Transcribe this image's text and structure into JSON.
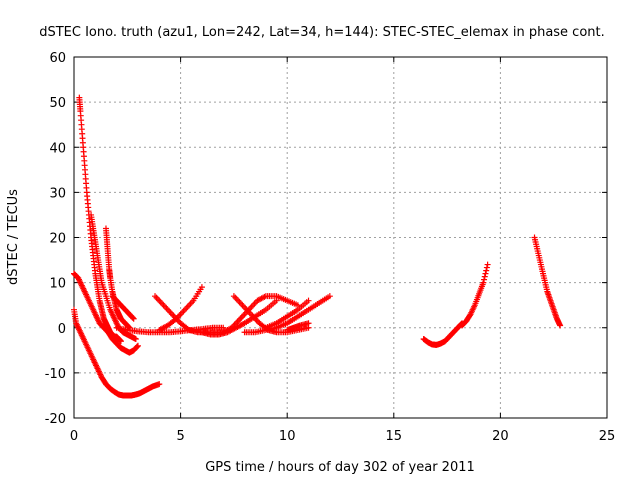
{
  "chart_data": {
    "type": "scatter",
    "title": "dSTEC Iono. truth (azu1, Lon=242, Lat=34, h=144): STEC-STEC_elemax in phase cont.",
    "xlabel": "GPS time / hours of day 302 of year 2011",
    "ylabel": "dSTEC  / TECUs",
    "xlim": [
      0,
      25
    ],
    "ylim": [
      -20,
      60
    ],
    "xticks": [
      0,
      5,
      10,
      15,
      20,
      25
    ],
    "yticks": [
      -20,
      -10,
      0,
      10,
      20,
      30,
      40,
      50,
      60
    ],
    "grid": true,
    "marker": "+",
    "color": "#ff0000",
    "series": [
      {
        "x": [
          0.25,
          0.3,
          0.4,
          0.5,
          0.6,
          0.7,
          0.8,
          0.9,
          1.0,
          1.1,
          1.2,
          1.3,
          1.4,
          1.5,
          1.6,
          1.7,
          1.8,
          1.9,
          2.0,
          2.1,
          2.2
        ],
        "y": [
          51,
          48,
          42,
          36,
          30,
          25,
          20,
          16,
          12,
          9,
          6,
          4,
          2,
          1,
          0,
          -1,
          -1.5,
          -2,
          -2,
          -2.5,
          -3
        ]
      },
      {
        "x": [
          0.8,
          0.9,
          1.0,
          1.1,
          1.2,
          1.3,
          1.5,
          1.7,
          1.9,
          2.1,
          2.3,
          2.5,
          2.7,
          2.9
        ],
        "y": [
          25,
          22,
          19,
          16,
          13,
          10,
          7,
          4,
          2,
          0,
          -1,
          -1.5,
          -2,
          -2.5
        ]
      },
      {
        "x": [
          1.5,
          1.55,
          1.6,
          1.65,
          1.7,
          1.8,
          1.9,
          2.0,
          2.1,
          2.2,
          2.4,
          2.6
        ],
        "y": [
          22,
          19,
          16,
          13,
          11,
          8,
          6,
          4,
          3,
          2,
          1,
          0
        ]
      },
      {
        "x": [
          0.0,
          0.2,
          0.4,
          0.6,
          0.8,
          1.0,
          1.2,
          1.4,
          1.6,
          1.8,
          2.0,
          2.2,
          2.4,
          2.6,
          2.8,
          3.0
        ],
        "y": [
          12,
          11,
          9,
          7,
          5,
          3,
          1,
          0,
          -1,
          -2.5,
          -3.5,
          -4.5,
          -5,
          -5.5,
          -5,
          -4
        ]
      },
      {
        "x": [
          0.0,
          0.1,
          0.3,
          0.5,
          0.7,
          0.9,
          1.1,
          1.3,
          1.5,
          1.7,
          1.9,
          2.1,
          2.3,
          2.5,
          2.7,
          2.9,
          3.1,
          3.3,
          3.5,
          3.7,
          4.0
        ],
        "y": [
          4,
          1,
          -1,
          -3,
          -5,
          -7,
          -9,
          -11,
          -12.5,
          -13.5,
          -14.2,
          -14.8,
          -15,
          -15,
          -15,
          -14.8,
          -14.5,
          -14,
          -13.5,
          -13,
          -12.5
        ]
      },
      {
        "x": [
          1.8,
          2.0,
          2.2,
          2.4,
          2.6,
          2.8
        ],
        "y": [
          7,
          6,
          5,
          4,
          3,
          2
        ]
      },
      {
        "x": [
          2.0,
          2.5,
          3.0,
          3.5,
          4.0,
          4.5,
          5.0,
          5.5,
          6.0,
          6.5,
          7.0
        ],
        "y": [
          0,
          -0.5,
          -0.8,
          -1,
          -1,
          -1,
          -0.8,
          -0.5,
          -0.3,
          0,
          0
        ]
      },
      {
        "x": [
          3.8,
          4.2,
          4.6,
          5.0,
          5.4,
          5.8,
          6.2,
          6.6,
          7.0
        ],
        "y": [
          7,
          5,
          3,
          1,
          -0.5,
          -1,
          -1,
          -1,
          -1
        ]
      },
      {
        "x": [
          4.0,
          4.4,
          4.8,
          5.2,
          5.6,
          6.0
        ],
        "y": [
          -0.5,
          0.5,
          2,
          4,
          6,
          9
        ]
      },
      {
        "x": [
          6.0,
          6.4,
          6.8,
          7.2,
          7.6,
          8.0,
          8.5,
          9.0,
          9.5
        ],
        "y": [
          -1,
          -1.5,
          -1.5,
          -1,
          0,
          1,
          2.5,
          4,
          6
        ]
      },
      {
        "x": [
          7.0,
          7.4,
          7.8,
          8.2,
          8.6,
          9.0,
          9.5,
          10.0,
          10.5
        ],
        "y": [
          -1,
          0,
          2,
          4,
          6,
          7,
          7,
          6,
          5
        ]
      },
      {
        "x": [
          7.5,
          7.9,
          8.3,
          8.7,
          9.1,
          9.5,
          10.0,
          10.5,
          11.0
        ],
        "y": [
          7,
          5,
          3,
          1,
          -0.5,
          -1,
          -1,
          -0.5,
          0
        ]
      },
      {
        "x": [
          8.0,
          8.5,
          9.0,
          9.5,
          10.0,
          10.5,
          11.0,
          11.5,
          12.0
        ],
        "y": [
          -1,
          -1,
          -0.5,
          0,
          1,
          2.5,
          4,
          5.5,
          7
        ]
      },
      {
        "x": [
          9.0,
          9.5,
          10.0,
          10.5,
          11.0
        ],
        "y": [
          0,
          1,
          2.5,
          4,
          6
        ]
      },
      {
        "x": [
          10.0,
          10.3,
          10.6,
          11.0
        ],
        "y": [
          -0.5,
          0,
          0.5,
          1
        ]
      },
      {
        "x": [
          16.4,
          16.6,
          16.8,
          17.0,
          17.2,
          17.4,
          17.6,
          17.8,
          18.0,
          18.2
        ],
        "y": [
          -2.5,
          -3.2,
          -3.7,
          -3.8,
          -3.5,
          -3,
          -2,
          -1,
          0,
          1
        ]
      },
      {
        "x": [
          18.2,
          18.4,
          18.6,
          18.8,
          19.0,
          19.2,
          19.4
        ],
        "y": [
          0.5,
          1.5,
          3,
          5,
          7.5,
          10,
          14
        ]
      },
      {
        "x": [
          21.6,
          21.75,
          21.9,
          22.05,
          22.2,
          22.35,
          22.5,
          22.65,
          22.8
        ],
        "y": [
          20,
          17,
          14,
          11,
          8,
          6,
          4,
          2,
          0.5
        ]
      }
    ]
  }
}
